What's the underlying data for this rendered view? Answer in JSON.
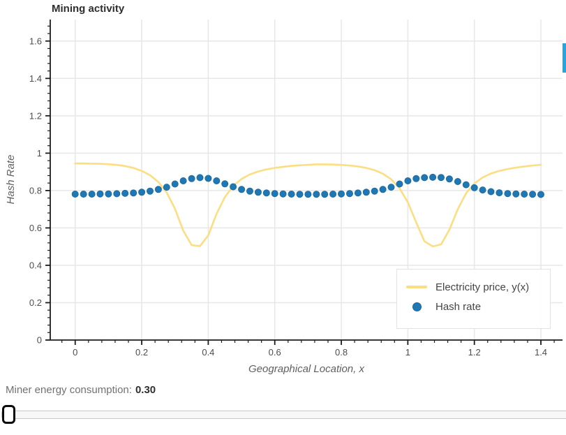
{
  "chart_data": {
    "type": [
      "line",
      "scatter"
    ],
    "title": "Mining activity",
    "xlabel": "Geographical Location, x",
    "ylabel": "Hash Rate",
    "xlim": [
      -0.075,
      1.465
    ],
    "ylim": [
      0,
      1.715
    ],
    "grid": true,
    "legend_position": "bottom-right",
    "x_major_ticks": [
      0,
      0.2,
      0.4,
      0.6,
      0.8,
      1,
      1.2,
      1.4
    ],
    "x_tick_labels": [
      "0",
      "0.2",
      "0.4",
      "0.6",
      "0.8",
      "1",
      "1.2",
      "1.4"
    ],
    "y_major_ticks": [
      0,
      0.2,
      0.4,
      0.6,
      0.8,
      1,
      1.2,
      1.4,
      1.6
    ],
    "y_tick_labels": [
      "0",
      "0.2",
      "0.4",
      "0.6",
      "0.8",
      "1",
      "1.2",
      "1.4",
      "1.6"
    ],
    "minor_tick_step": 0.04,
    "x": [
      0,
      0.025,
      0.05,
      0.075,
      0.1,
      0.125,
      0.15,
      0.175,
      0.2,
      0.225,
      0.25,
      0.275,
      0.3,
      0.325,
      0.35,
      0.375,
      0.4,
      0.425,
      0.45,
      0.475,
      0.5,
      0.525,
      0.55,
      0.575,
      0.6,
      0.625,
      0.65,
      0.675,
      0.7,
      0.725,
      0.75,
      0.775,
      0.8,
      0.825,
      0.85,
      0.875,
      0.9,
      0.925,
      0.95,
      0.975,
      1.0,
      1.025,
      1.05,
      1.075,
      1.1,
      1.125,
      1.15,
      1.175,
      1.2,
      1.225,
      1.25,
      1.275,
      1.3,
      1.325,
      1.35,
      1.375,
      1.4
    ],
    "series": [
      {
        "name": "Electricity price, y(x)",
        "type": "line",
        "color": "#fcde82",
        "values": [
          0.945,
          0.945,
          0.944,
          0.943,
          0.941,
          0.937,
          0.931,
          0.921,
          0.905,
          0.882,
          0.846,
          0.79,
          0.703,
          0.585,
          0.508,
          0.502,
          0.56,
          0.675,
          0.765,
          0.825,
          0.862,
          0.886,
          0.902,
          0.913,
          0.921,
          0.927,
          0.932,
          0.935,
          0.938,
          0.94,
          0.94,
          0.939,
          0.937,
          0.934,
          0.929,
          0.921,
          0.909,
          0.89,
          0.86,
          0.812,
          0.737,
          0.63,
          0.528,
          0.501,
          0.512,
          0.59,
          0.7,
          0.785,
          0.838,
          0.87,
          0.891,
          0.905,
          0.915,
          0.923,
          0.929,
          0.934,
          0.938
        ]
      },
      {
        "name": "Hash rate",
        "type": "scatter",
        "color": "#1f77b4",
        "values": [
          0.781,
          0.781,
          0.781,
          0.782,
          0.782,
          0.783,
          0.785,
          0.787,
          0.791,
          0.797,
          0.806,
          0.818,
          0.835,
          0.852,
          0.864,
          0.869,
          0.865,
          0.852,
          0.836,
          0.82,
          0.806,
          0.797,
          0.791,
          0.787,
          0.784,
          0.782,
          0.781,
          0.78,
          0.78,
          0.78,
          0.78,
          0.781,
          0.782,
          0.784,
          0.787,
          0.791,
          0.797,
          0.806,
          0.818,
          0.835,
          0.852,
          0.864,
          0.869,
          0.871,
          0.87,
          0.862,
          0.848,
          0.831,
          0.815,
          0.803,
          0.794,
          0.788,
          0.784,
          0.782,
          0.781,
          0.78,
          0.779
        ]
      }
    ]
  },
  "slider": {
    "label": "Miner energy consumption:",
    "value": "0.30"
  },
  "scroll_indicator": {
    "color": "#2ba4dc"
  },
  "colors": {
    "grid": "#e7e7e7",
    "axis": "#1c1c1c",
    "tick_label": "#4d4d4d"
  }
}
